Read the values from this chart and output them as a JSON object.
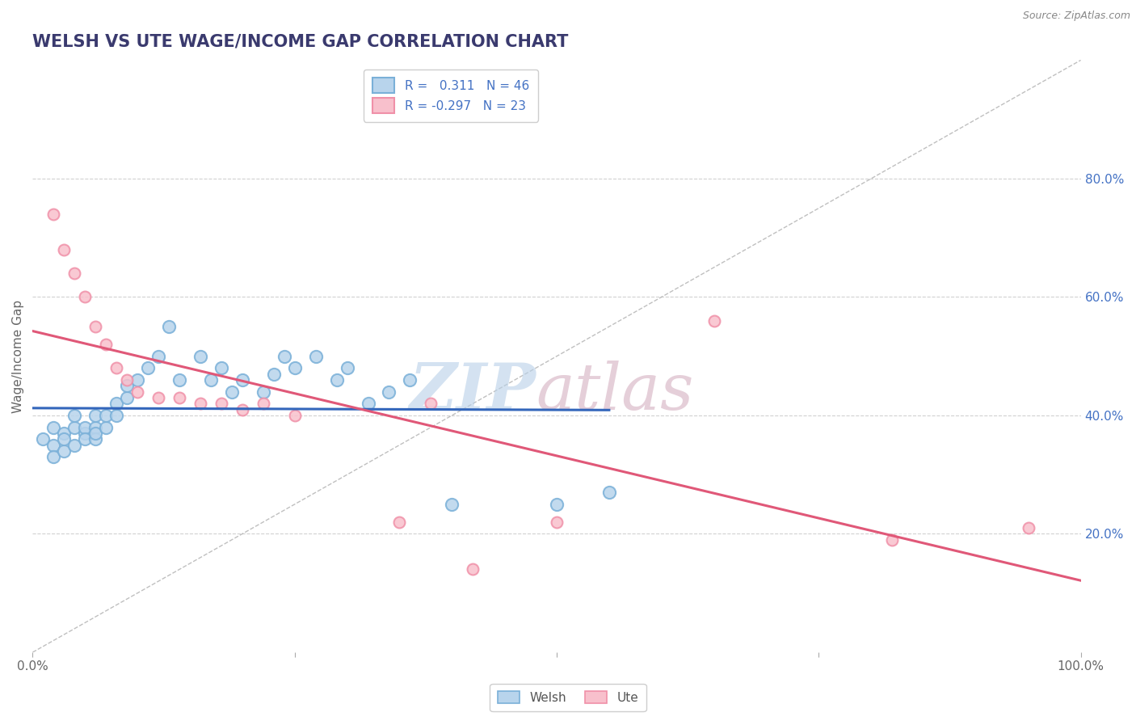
{
  "title": "WELSH VS UTE WAGE/INCOME GAP CORRELATION CHART",
  "source": "Source: ZipAtlas.com",
  "ylabel": "Wage/Income Gap",
  "xlabel": "",
  "xlim": [
    0.0,
    1.0
  ],
  "ylim": [
    0.0,
    1.0
  ],
  "y_tick_positions": [
    0.2,
    0.4,
    0.6,
    0.8
  ],
  "y_tick_labels_right": [
    "20.0%",
    "40.0%",
    "60.0%",
    "80.0%"
  ],
  "title_color": "#3a3a6e",
  "title_fontsize": 15,
  "watermark_color_zip": "#b8d0e8",
  "watermark_color_atlas": "#d4afc0",
  "legend_r_welsh": " 0.311",
  "legend_n_welsh": "46",
  "legend_r_ute": "-0.297",
  "legend_n_ute": "23",
  "welsh_color": "#7ab0d8",
  "welsh_color_fill": "#b8d4ec",
  "ute_color": "#f090a8",
  "ute_color_fill": "#f8c0cc",
  "trend_welsh_color": "#3366bb",
  "trend_ute_color": "#e05878",
  "grid_color": "#cccccc",
  "background_color": "#ffffff",
  "dashed_line_color": "#b0b0b0",
  "legend_text_color": "#4472c4",
  "right_tick_color": "#4472c4",
  "source_color": "#888888",
  "ylabel_color": "#666666",
  "xtick_color": "#666666",
  "welsh_x": [
    0.01,
    0.02,
    0.02,
    0.02,
    0.03,
    0.03,
    0.03,
    0.04,
    0.04,
    0.04,
    0.05,
    0.05,
    0.05,
    0.06,
    0.06,
    0.06,
    0.06,
    0.07,
    0.07,
    0.08,
    0.08,
    0.09,
    0.09,
    0.1,
    0.11,
    0.12,
    0.13,
    0.14,
    0.16,
    0.17,
    0.18,
    0.19,
    0.2,
    0.22,
    0.23,
    0.24,
    0.25,
    0.27,
    0.29,
    0.3,
    0.32,
    0.34,
    0.36,
    0.4,
    0.5,
    0.55
  ],
  "welsh_y": [
    0.36,
    0.38,
    0.35,
    0.33,
    0.37,
    0.34,
    0.36,
    0.38,
    0.35,
    0.4,
    0.37,
    0.38,
    0.36,
    0.38,
    0.36,
    0.4,
    0.37,
    0.38,
    0.4,
    0.4,
    0.42,
    0.43,
    0.45,
    0.46,
    0.48,
    0.5,
    0.55,
    0.46,
    0.5,
    0.46,
    0.48,
    0.44,
    0.46,
    0.44,
    0.47,
    0.5,
    0.48,
    0.5,
    0.46,
    0.48,
    0.42,
    0.44,
    0.46,
    0.25,
    0.25,
    0.27
  ],
  "ute_x": [
    0.02,
    0.03,
    0.04,
    0.05,
    0.06,
    0.07,
    0.08,
    0.09,
    0.1,
    0.12,
    0.14,
    0.16,
    0.18,
    0.2,
    0.22,
    0.25,
    0.35,
    0.38,
    0.42,
    0.5,
    0.65,
    0.82,
    0.95
  ],
  "ute_y": [
    0.74,
    0.68,
    0.64,
    0.6,
    0.55,
    0.52,
    0.48,
    0.46,
    0.44,
    0.43,
    0.43,
    0.42,
    0.42,
    0.41,
    0.42,
    0.4,
    0.22,
    0.42,
    0.14,
    0.22,
    0.56,
    0.19,
    0.21
  ],
  "welsh_marker_size": 120,
  "ute_marker_size": 100,
  "trend_welsh_start_x": 0.0,
  "trend_welsh_end_x": 0.55,
  "trend_ute_start_x": 0.0,
  "trend_ute_end_x": 1.0,
  "diag_line_x": [
    0.0,
    1.0
  ],
  "diag_line_y": [
    0.0,
    1.0
  ]
}
